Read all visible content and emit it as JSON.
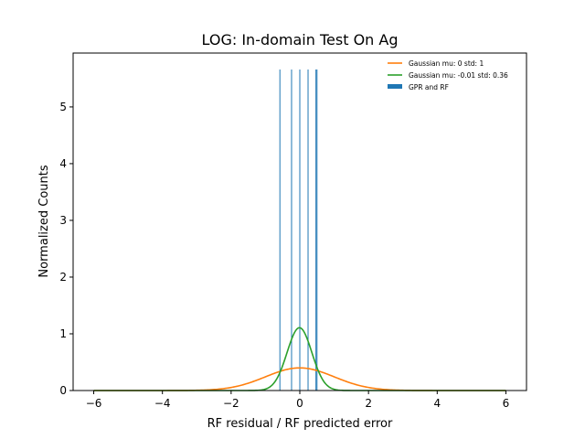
{
  "chart_data": {
    "type": "histogram",
    "title": "LOG: In-domain Test On Ag",
    "xlabel": "RF residual / RF predicted error",
    "ylabel": "Normalized Counts",
    "xlim": [
      -6.6,
      6.6
    ],
    "ylim": [
      0,
      5.95
    ],
    "xticks": [
      -6,
      -4,
      -2,
      0,
      2,
      4,
      6
    ],
    "xtick_labels": [
      "−6",
      "−4",
      "−2",
      "0",
      "2",
      "4",
      "6"
    ],
    "yticks": [
      0,
      1,
      2,
      3,
      4,
      5
    ],
    "ytick_labels": [
      "0",
      "1",
      "2",
      "3",
      "4",
      "5"
    ],
    "legend_position": "top-right",
    "series": [
      {
        "name": "Gaussian mu: 0 std: 1",
        "kind": "gaussian",
        "mu": 0,
        "std": 1,
        "x_range": [
          -6,
          6
        ],
        "color": "#ff7f0e"
      },
      {
        "name": "Gaussian mu: -0.01 std: 0.36",
        "kind": "gaussian",
        "mu": -0.01,
        "std": 0.36,
        "x_range": [
          -6,
          6
        ],
        "color": "#2ca02c"
      },
      {
        "name": "GPR and RF",
        "kind": "bars",
        "color": "#1f77b4",
        "bars": [
          {
            "x": -0.58,
            "height": 5.66
          },
          {
            "x": -0.24,
            "height": 5.66
          },
          {
            "x": 0.0,
            "height": 5.66
          },
          {
            "x": 0.24,
            "height": 5.66
          },
          {
            "x": 0.47,
            "height": 5.66
          },
          {
            "x": 0.5,
            "height": 5.66
          }
        ]
      }
    ]
  }
}
